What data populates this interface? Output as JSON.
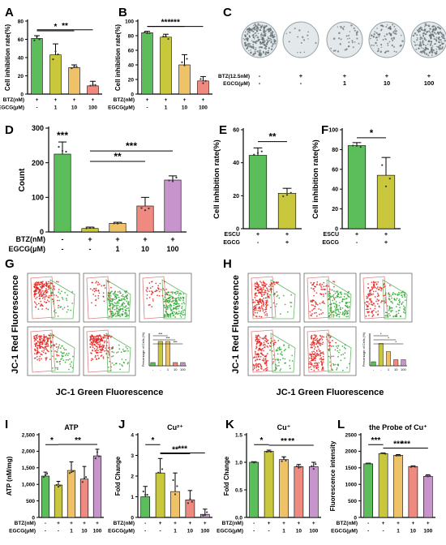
{
  "figure": {
    "panel_letters": [
      "A",
      "B",
      "C",
      "D",
      "E",
      "F",
      "G",
      "H",
      "I",
      "J",
      "K",
      "L"
    ]
  },
  "colors": {
    "green": "#5cbe5a",
    "olive": "#c9c83c",
    "orange": "#f0c268",
    "salmon": "#ee8a80",
    "purple": "#c794cc",
    "axis": "#000000"
  },
  "chart_data": [
    {
      "panel": "A",
      "type": "bar",
      "title": "",
      "ylabel": "Cell inhibition rate(%)",
      "ylim": [
        0,
        80
      ],
      "yticks": [
        0,
        20,
        40,
        60,
        80
      ],
      "values": [
        61,
        43,
        29,
        9
      ],
      "errors": [
        3,
        12,
        3,
        5
      ],
      "colors": [
        "#5cbe5a",
        "#c9c83c",
        "#f0c268",
        "#ee8a80"
      ],
      "factors": [
        {
          "label": "BTZ(nM)",
          "values": [
            "+",
            "+",
            "+",
            "+"
          ]
        },
        {
          "label": "EGCG(μM)",
          "values": [
            "-",
            "1",
            "10",
            "100"
          ]
        }
      ],
      "sig": [
        {
          "from": 0,
          "to": 3,
          "label": "**"
        },
        {
          "from": 0,
          "to": 2,
          "label": "*"
        }
      ]
    },
    {
      "panel": "B",
      "type": "bar",
      "title": "",
      "ylabel": "Cell inhibition rate(%)",
      "ylim": [
        0,
        100
      ],
      "yticks": [
        0,
        20,
        40,
        60,
        80,
        100
      ],
      "values": [
        84,
        78,
        40,
        18
      ],
      "errors": [
        2,
        4,
        14,
        6
      ],
      "colors": [
        "#5cbe5a",
        "#c9c83c",
        "#f0c268",
        "#ee8a80"
      ],
      "factors": [
        {
          "label": "BTZ(nM)",
          "values": [
            "+",
            "+",
            "+",
            "+"
          ]
        },
        {
          "label": "EGCG(μM)",
          "values": [
            "-",
            "1",
            "10",
            "100"
          ]
        }
      ],
      "sig": [
        {
          "from": 0,
          "to": 3,
          "label": "***"
        },
        {
          "from": 0,
          "to": 2,
          "label": "***"
        }
      ]
    },
    {
      "panel": "D",
      "type": "bar",
      "title": "",
      "ylabel": "Count",
      "ylim": [
        0,
        300
      ],
      "yticks": [
        0,
        100,
        200,
        300
      ],
      "values": [
        225,
        10,
        25,
        75,
        150
      ],
      "errors": [
        35,
        4,
        3,
        25,
        12
      ],
      "colors": [
        "#5cbe5a",
        "#c9c83c",
        "#f0c268",
        "#ee8a80",
        "#c794cc"
      ],
      "factors": [
        {
          "label": "BTZ(nM)",
          "values": [
            "-",
            "+",
            "+",
            "+",
            "+"
          ]
        },
        {
          "label": "EGCG(μM)",
          "values": [
            "-",
            "-",
            "1",
            "10",
            "100"
          ]
        }
      ],
      "sig": [
        {
          "over": 0,
          "label": "***"
        },
        {
          "from": 1,
          "to": 4,
          "label": "***"
        },
        {
          "from": 1,
          "to": 3,
          "label": "**"
        }
      ]
    },
    {
      "panel": "E",
      "type": "bar",
      "title": "",
      "ylabel": "Cell inhibition rate(%)",
      "ylim": [
        0,
        60
      ],
      "yticks": [
        0,
        20,
        40,
        60
      ],
      "values": [
        44.5,
        21.5
      ],
      "errors": [
        4.5,
        3
      ],
      "colors": [
        "#5cbe5a",
        "#c9c83c"
      ],
      "factors": [
        {
          "label": "ESCU",
          "values": [
            "+",
            "+"
          ]
        },
        {
          "label": "EGCG",
          "values": [
            "-",
            "+"
          ]
        }
      ],
      "sig": [
        {
          "from": 0,
          "to": 1,
          "label": "**"
        }
      ]
    },
    {
      "panel": "F",
      "type": "bar",
      "title": "",
      "ylabel": "Cell inhibition rate(%)",
      "ylim": [
        0,
        100
      ],
      "yticks": [
        0,
        20,
        40,
        60,
        80,
        100
      ],
      "values": [
        84,
        54
      ],
      "errors": [
        3,
        18
      ],
      "colors": [
        "#5cbe5a",
        "#c9c83c"
      ],
      "factors": [
        {
          "label": "ESCU",
          "values": [
            "+",
            "+"
          ]
        },
        {
          "label": "EGCG",
          "values": [
            "-",
            "+"
          ]
        }
      ],
      "sig": [
        {
          "from": 0,
          "to": 1,
          "label": "*"
        }
      ]
    },
    {
      "panel": "I",
      "type": "bar",
      "title": "ATP",
      "ylabel": "ATP (nM/mg)",
      "ylim": [
        0,
        2500
      ],
      "yticks": [
        0,
        500,
        1000,
        1500,
        2000,
        2500
      ],
      "ytick_labels": [
        "0",
        "500",
        "1,000",
        "1,500",
        "2,000",
        "2,500"
      ],
      "values": [
        1250,
        980,
        1420,
        1160,
        1860
      ],
      "errors": [
        120,
        110,
        260,
        380,
        200
      ],
      "colors": [
        "#5cbe5a",
        "#c9c83c",
        "#f0c268",
        "#ee8a80",
        "#c794cc"
      ],
      "factors": [
        {
          "label": "BTZ(nM)",
          "values": [
            "-",
            "+",
            "+",
            "+",
            "+"
          ]
        },
        {
          "label": "EGCG(μM)",
          "values": [
            "-",
            "-",
            "1",
            "10",
            "100"
          ]
        }
      ],
      "sig": [
        {
          "from": 0,
          "to": 1,
          "label": "*"
        },
        {
          "from": 1,
          "to": 4,
          "label": "**"
        }
      ]
    },
    {
      "panel": "J",
      "type": "bar",
      "title": "Cu²⁺",
      "ylabel": "Fold Change",
      "ylim": [
        0,
        4
      ],
      "yticks": [
        0,
        1,
        2,
        3,
        4
      ],
      "values": [
        1.0,
        2.15,
        1.25,
        0.85,
        0.15
      ],
      "errors": [
        0.5,
        0.7,
        0.9,
        0.45,
        0.25
      ],
      "colors": [
        "#5cbe5a",
        "#c9c83c",
        "#f0c268",
        "#ee8a80",
        "#c794cc"
      ],
      "factors": [
        {
          "label": "BTZ(nM)",
          "values": [
            "-",
            "+",
            "+",
            "+",
            "+"
          ]
        },
        {
          "label": "EGCG(μM)",
          "values": [
            "-",
            "-",
            "1",
            "10",
            "100"
          ]
        }
      ],
      "sig": [
        {
          "from": 0,
          "to": 1,
          "label": "*"
        },
        {
          "from": 1,
          "to": 4,
          "label": "***"
        },
        {
          "from": 1,
          "to": 3,
          "label": "**"
        }
      ]
    },
    {
      "panel": "K",
      "type": "bar",
      "title": "Cu⁺",
      "ylabel": "Fold Change",
      "ylim": [
        0,
        1.5
      ],
      "yticks": [
        0,
        0.5,
        1.0,
        1.5
      ],
      "ytick_labels": [
        "0.0",
        "0.5",
        "1.0",
        "1.5"
      ],
      "values": [
        1.0,
        1.2,
        1.05,
        0.92,
        0.92
      ],
      "errors": [
        0.01,
        0.02,
        0.05,
        0.04,
        0.08
      ],
      "colors": [
        "#5cbe5a",
        "#c9c83c",
        "#f0c268",
        "#ee8a80",
        "#c794cc"
      ],
      "factors": [
        {
          "label": "BTZ(nM)",
          "values": [
            "-",
            "+",
            "+",
            "+",
            "+"
          ]
        },
        {
          "label": "EGCG(μM)",
          "values": [
            "-",
            "-",
            "1",
            "10",
            "100"
          ]
        }
      ],
      "sig": [
        {
          "from": 0,
          "to": 1,
          "label": "*"
        },
        {
          "from": 1,
          "to": 4,
          "label": "**"
        },
        {
          "from": 1,
          "to": 3,
          "label": "**"
        }
      ]
    },
    {
      "panel": "L",
      "type": "bar",
      "title": "the Probe of Cu⁺",
      "ylabel": "Fluorescence intensity",
      "ylim": [
        0,
        2500
      ],
      "yticks": [
        0,
        500,
        1000,
        1500,
        2000,
        2500
      ],
      "values": [
        1620,
        1930,
        1880,
        1540,
        1240
      ],
      "errors": [
        20,
        20,
        20,
        20,
        50
      ],
      "colors": [
        "#5cbe5a",
        "#c9c83c",
        "#f0c268",
        "#ee8a80",
        "#c794cc"
      ],
      "factors": [
        {
          "label": "BTZ(nM)",
          "values": [
            "-",
            "+",
            "+",
            "+",
            "+"
          ]
        },
        {
          "label": "EGCG(μM)",
          "values": [
            "-",
            "-",
            "1",
            "10",
            "100"
          ]
        }
      ],
      "sig": [
        {
          "from": 0,
          "to": 1,
          "label": "***"
        },
        {
          "from": 1,
          "to": 4,
          "label": "***"
        },
        {
          "from": 1,
          "to": 3,
          "label": "***"
        }
      ]
    }
  ],
  "panel_c": {
    "factors": [
      {
        "label": "BTZ(12.5nM)",
        "values": [
          "-",
          "+",
          "+",
          "+",
          "+"
        ]
      },
      {
        "label": "EGCG(μM)",
        "values": [
          "-",
          "-",
          "1",
          "10",
          "100"
        ]
      }
    ],
    "colony_density": [
      1.0,
      0.06,
      0.15,
      0.3,
      0.75
    ]
  },
  "flow_g": {
    "ylabel": "JC-1 Red Fluorescence",
    "xlabel": "JC-1 Green Fluorescence",
    "inset_ylabel": "Percentage of Cells (%)",
    "inset_values": [
      10,
      75,
      75,
      10,
      10
    ],
    "inset_ylim": [
      0,
      100
    ],
    "inset_xlabels": [
      "-",
      "-",
      "1",
      "10",
      "100"
    ],
    "inset_sig": [
      "***",
      "***",
      "***"
    ],
    "red_fraction": [
      0.85,
      0.15,
      0.2,
      0.8,
      0.8
    ]
  },
  "flow_h": {
    "ylabel": "JC-1 Red Fluorescence",
    "xlabel": "JC-1 Green Fluorescence",
    "inset_ylabel": "Percentage of Cells (%)",
    "inset_values": [
      10,
      55,
      35,
      15,
      15
    ],
    "inset_ylim": [
      0,
      80
    ],
    "inset_xlabels": [
      "-",
      "-",
      "1",
      "10",
      "100"
    ],
    "inset_sig": [
      "*",
      "*",
      "*"
    ],
    "red_fraction": [
      0.9,
      0.35,
      0.55,
      0.8,
      0.82
    ]
  }
}
